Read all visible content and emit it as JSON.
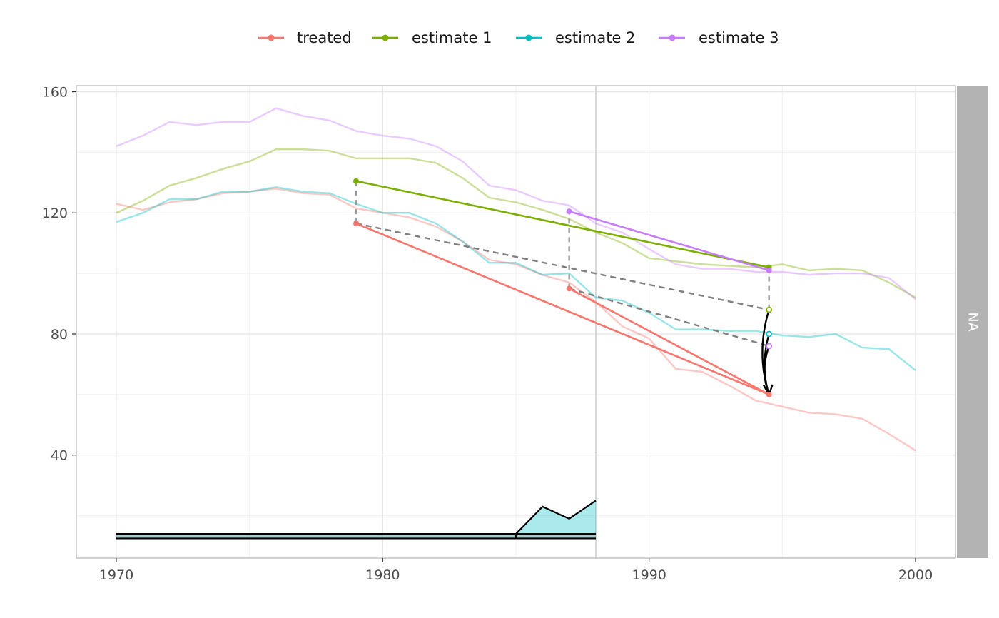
{
  "chart_data": {
    "type": "line",
    "title": "",
    "xlabel": "",
    "ylabel": "",
    "xlim": [
      1968.5,
      2001.5
    ],
    "ylim": [
      6,
      162
    ],
    "x_ticks": [
      1970,
      1980,
      1990,
      2000
    ],
    "x_tick_labels": [
      "1970",
      "1980",
      "1990",
      "2000"
    ],
    "y_ticks": [
      40,
      80,
      120,
      160
    ],
    "y_tick_labels": [
      "40",
      "80",
      "120",
      "160"
    ],
    "grid": true,
    "legend_position": "top",
    "facet_strip_label": "NA",
    "treatment_year": 1988,
    "series": [
      {
        "name": "treated",
        "color": "#F8766D",
        "x": [
          1970,
          1971,
          1972,
          1973,
          1974,
          1975,
          1976,
          1977,
          1978,
          1979,
          1980,
          1981,
          1982,
          1983,
          1984,
          1985,
          1986,
          1987,
          1988,
          1989,
          1990,
          1991,
          1992,
          1993,
          1994,
          1995,
          1996,
          1997,
          1998,
          1999,
          2000
        ],
        "values": [
          123,
          121,
          123.5,
          124.5,
          126.5,
          127,
          128,
          126.5,
          126,
          121.5,
          120,
          118.5,
          115.5,
          110.5,
          104.5,
          103,
          99.5,
          97,
          90.5,
          82.5,
          78.5,
          68.5,
          67.5,
          63,
          58,
          56,
          54,
          53.5,
          52,
          47,
          41.5
        ]
      },
      {
        "name": "estimate 1",
        "color": "#7CAE00",
        "x": [
          1970,
          1971,
          1972,
          1973,
          1974,
          1975,
          1976,
          1977,
          1978,
          1979,
          1980,
          1981,
          1982,
          1983,
          1984,
          1985,
          1986,
          1987,
          1988,
          1989,
          1990,
          1991,
          1992,
          1993,
          1994,
          1995,
          1996,
          1997,
          1998,
          1999,
          2000
        ],
        "values": [
          120,
          124,
          129,
          131.5,
          134.5,
          137,
          141,
          141,
          140.5,
          138,
          138,
          138,
          136.5,
          131.5,
          125,
          123.5,
          121,
          118,
          113.5,
          110,
          105,
          104,
          103,
          102.5,
          102,
          103,
          101,
          101.5,
          101,
          97,
          92
        ]
      },
      {
        "name": "estimate 2",
        "color": "#00BFC4",
        "x": [
          1970,
          1971,
          1972,
          1973,
          1974,
          1975,
          1976,
          1977,
          1978,
          1979,
          1980,
          1981,
          1982,
          1983,
          1984,
          1985,
          1986,
          1987,
          1988,
          1989,
          1990,
          1991,
          1992,
          1993,
          1994,
          1995,
          1996,
          1997,
          1998,
          1999,
          2000
        ],
        "values": [
          117,
          120,
          124.5,
          124.5,
          127,
          127,
          128.5,
          127,
          126.5,
          123,
          120,
          120,
          116.5,
          110.5,
          103.5,
          103.5,
          99.5,
          100,
          92,
          91,
          87,
          81.5,
          81.5,
          81,
          81,
          79.5,
          79,
          80,
          75.5,
          75,
          68
        ]
      },
      {
        "name": "estimate 3",
        "color": "#C77CFF",
        "x": [
          1970,
          1971,
          1972,
          1973,
          1974,
          1975,
          1976,
          1977,
          1978,
          1979,
          1980,
          1981,
          1982,
          1983,
          1984,
          1985,
          1986,
          1987,
          1988,
          1989,
          1990,
          1991,
          1992,
          1993,
          1994,
          1995,
          1996,
          1997,
          1998,
          1999,
          2000
        ],
        "values": [
          142,
          145.5,
          150,
          149,
          150,
          150,
          154.5,
          152,
          150.5,
          147,
          145.5,
          144.5,
          142,
          137,
          129,
          127.5,
          124,
          122.5,
          116.5,
          113.5,
          108,
          103,
          101.5,
          101.5,
          100.5,
          100.5,
          99.5,
          100,
          100,
          98.5,
          91.5
        ]
      }
    ],
    "estimate_segments": [
      {
        "series": "treated",
        "x": [
          1979,
          1994.5
        ],
        "y": [
          116.5,
          60
        ]
      },
      {
        "series": "treated",
        "x": [
          1987,
          1994.5
        ],
        "y": [
          95,
          60
        ]
      },
      {
        "series": "estimate 1",
        "x": [
          1979,
          1994.5
        ],
        "y": [
          130.5,
          102
        ]
      },
      {
        "series": "estimate 3",
        "x": [
          1987,
          1994.5
        ],
        "y": [
          120.5,
          101
        ]
      }
    ],
    "counterfactual_lines": [
      {
        "x": [
          1979,
          1994.5
        ],
        "y": [
          116.5,
          88
        ]
      },
      {
        "x": [
          1987,
          1994.5
        ],
        "y": [
          95,
          76
        ]
      }
    ],
    "vertical_gaps": [
      {
        "x": 1979,
        "y": [
          116.5,
          130.5
        ]
      },
      {
        "x": 1987,
        "y": [
          95,
          120.5
        ]
      },
      {
        "x": 1994.5,
        "y": [
          102,
          88
        ]
      }
    ],
    "counterfactual_points": [
      {
        "series": "estimate 1",
        "x": 1994.5,
        "y": 88
      },
      {
        "series": "estimate 2",
        "x": 1994.5,
        "y": 80
      },
      {
        "series": "estimate 3",
        "x": 1994.5,
        "y": 76
      }
    ],
    "arrow_target": {
      "x": 1994.5,
      "y": 60
    },
    "weights": {
      "treated_band_x": [
        1970,
        1988
      ],
      "treated_band_y": [
        12.5,
        14
      ],
      "estimate_2_area": {
        "x": [
          1970,
          1985,
          1986,
          1987,
          1988
        ],
        "y": [
          14,
          14,
          23,
          19,
          25
        ]
      },
      "baseline_y": 12.5
    }
  }
}
